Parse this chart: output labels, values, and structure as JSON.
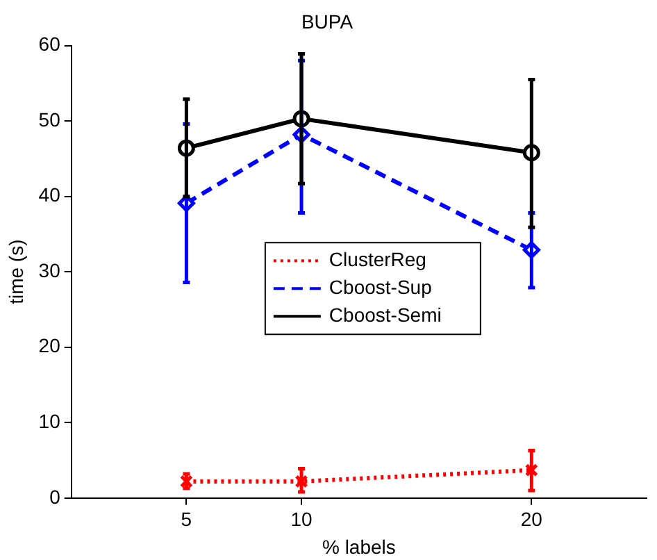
{
  "chart_data": {
    "type": "line",
    "title": "BUPA",
    "xlabel": "% labels",
    "ylabel": "time (s)",
    "x": [
      5,
      10,
      20
    ],
    "xlim": [
      0,
      25
    ],
    "xticks": [
      5,
      10,
      20
    ],
    "ylim": [
      0,
      60
    ],
    "yticks": [
      0,
      10,
      20,
      30,
      40,
      50,
      60
    ],
    "grid": false,
    "legend": "center",
    "series": [
      {
        "name": "ClusterReg",
        "color": "#ff0000",
        "values": [
          2.2,
          2.2,
          3.7
        ],
        "errors": [
          [
            1.3,
            3.2
          ],
          [
            0.8,
            3.9
          ],
          [
            1.0,
            6.3
          ]
        ],
        "marker": "cross",
        "line_style": "dotted"
      },
      {
        "name": "Cboost-Sup",
        "color": "#0000ff",
        "values": [
          39.1,
          48.2,
          32.9
        ],
        "errors": [
          [
            28.6,
            49.6
          ],
          [
            37.8,
            58
          ],
          [
            27.9,
            37.8
          ]
        ],
        "marker": "diamond",
        "line_style": "dashed"
      },
      {
        "name": "Cboost-Semi",
        "color": "#000000",
        "values": [
          46.4,
          50.3,
          45.8
        ],
        "errors": [
          [
            40,
            52.9
          ],
          [
            41.7,
            58.9
          ],
          [
            35.9,
            55.5
          ]
        ],
        "marker": "circle",
        "line_style": "solid"
      }
    ]
  }
}
